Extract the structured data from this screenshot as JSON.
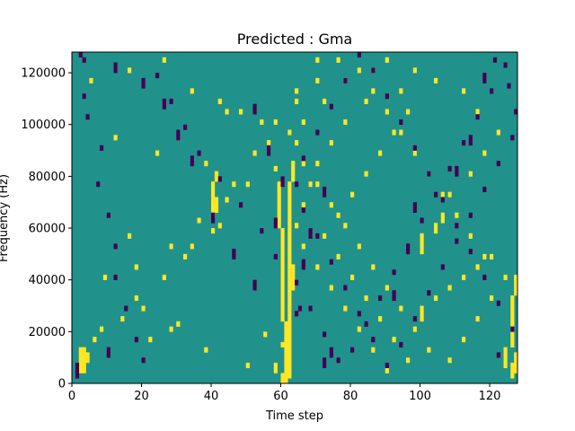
{
  "chart_data": {
    "type": "heatmap",
    "title": "Predicted : Gma",
    "xlabel": "Time step",
    "ylabel": "Frequency (Hz)",
    "xlim": [
      0,
      128
    ],
    "ylim": [
      0,
      128000
    ],
    "x_ticks": [
      0,
      20,
      40,
      60,
      80,
      100,
      120
    ],
    "y_ticks": [
      0,
      20000,
      40000,
      60000,
      80000,
      100000,
      120000
    ],
    "x_tick_labels": [
      "0",
      "20",
      "40",
      "60",
      "80",
      "100",
      "120"
    ],
    "y_tick_labels": [
      "0",
      "20000",
      "40000",
      "60000",
      "80000",
      "100000",
      "120000"
    ],
    "rows": 64,
    "cols": 128,
    "value_levels": [
      -1,
      0,
      1
    ],
    "colormap": {
      "-1": "#440154",
      "0": "#21918c",
      "1": "#fde725"
    },
    "background_value": 0,
    "cells": {
      "high": [
        [
          2,
          2
        ],
        [
          3,
          2
        ],
        [
          4,
          2
        ],
        [
          5,
          2
        ],
        [
          6,
          2
        ],
        [
          2,
          3
        ],
        [
          3,
          3
        ],
        [
          4,
          3
        ],
        [
          5,
          3
        ],
        [
          6,
          3
        ],
        [
          4,
          4
        ],
        [
          5,
          4
        ],
        [
          7,
          60
        ],
        [
          3,
          50
        ],
        [
          9,
          55
        ],
        [
          6,
          38
        ],
        [
          11,
          30
        ],
        [
          8,
          22
        ],
        [
          12,
          14
        ],
        [
          10,
          8
        ],
        [
          20,
          9
        ],
        [
          22,
          18
        ],
        [
          26,
          28
        ],
        [
          29,
          40
        ],
        [
          31,
          36
        ],
        [
          35,
          44
        ],
        [
          38,
          50
        ],
        [
          41,
          58
        ],
        [
          44,
          24
        ],
        [
          47,
          12
        ],
        [
          58,
          5
        ],
        [
          60,
          16
        ],
        [
          62,
          26
        ],
        [
          56,
          34
        ],
        [
          54,
          42
        ],
        [
          52,
          48
        ],
        [
          50,
          54
        ],
        [
          48,
          62
        ],
        [
          38,
          59
        ],
        [
          37,
          59
        ],
        [
          36,
          59
        ],
        [
          35,
          59
        ],
        [
          34,
          59
        ],
        [
          33,
          59
        ],
        [
          32,
          59
        ],
        [
          31,
          59
        ],
        [
          30,
          59
        ],
        [
          29,
          60
        ],
        [
          28,
          60
        ],
        [
          27,
          60
        ],
        [
          26,
          60
        ],
        [
          25,
          60
        ],
        [
          24,
          60
        ],
        [
          23,
          60
        ],
        [
          22,
          60
        ],
        [
          21,
          60
        ],
        [
          20,
          60
        ],
        [
          19,
          60
        ],
        [
          18,
          60
        ],
        [
          17,
          60
        ],
        [
          16,
          60
        ],
        [
          15,
          60
        ],
        [
          14,
          60
        ],
        [
          13,
          60
        ],
        [
          12,
          60
        ],
        [
          11,
          61
        ],
        [
          10,
          61
        ],
        [
          9,
          61
        ],
        [
          8,
          61
        ],
        [
          7,
          61
        ],
        [
          6,
          61
        ],
        [
          5,
          61
        ],
        [
          4,
          61
        ],
        [
          3,
          61
        ],
        [
          2,
          61
        ],
        [
          1,
          61
        ],
        [
          0,
          61
        ],
        [
          1,
          62
        ],
        [
          2,
          62
        ],
        [
          3,
          62
        ],
        [
          4,
          62
        ],
        [
          5,
          62
        ],
        [
          6,
          62
        ],
        [
          7,
          62
        ],
        [
          8,
          62
        ],
        [
          9,
          62
        ],
        [
          10,
          62
        ],
        [
          11,
          62
        ],
        [
          12,
          62
        ],
        [
          13,
          62
        ],
        [
          14,
          62
        ],
        [
          15,
          62
        ],
        [
          16,
          62
        ],
        [
          17,
          62
        ],
        [
          18,
          62
        ],
        [
          19,
          62
        ],
        [
          20,
          62
        ],
        [
          21,
          62
        ],
        [
          22,
          62
        ],
        [
          23,
          62
        ],
        [
          24,
          62
        ],
        [
          25,
          62
        ],
        [
          26,
          62
        ],
        [
          27,
          62
        ],
        [
          28,
          62
        ],
        [
          29,
          62
        ],
        [
          30,
          62
        ],
        [
          31,
          62
        ],
        [
          32,
          62
        ],
        [
          33,
          62
        ],
        [
          34,
          62
        ],
        [
          35,
          62
        ],
        [
          36,
          62
        ],
        [
          37,
          62
        ],
        [
          38,
          62
        ],
        [
          39,
          63
        ],
        [
          40,
          63
        ],
        [
          41,
          63
        ],
        [
          42,
          63
        ],
        [
          0,
          60
        ],
        [
          1,
          60
        ],
        [
          33,
          40
        ],
        [
          34,
          40
        ],
        [
          35,
          40
        ],
        [
          36,
          40
        ],
        [
          37,
          40
        ],
        [
          38,
          40
        ],
        [
          39,
          41
        ],
        [
          40,
          41
        ],
        [
          33,
          41
        ],
        [
          34,
          41
        ],
        [
          35,
          41
        ],
        [
          2,
          58
        ],
        [
          3,
          58
        ],
        [
          18,
          63
        ],
        [
          19,
          63
        ],
        [
          20,
          63
        ],
        [
          21,
          63
        ],
        [
          22,
          63
        ],
        [
          3,
          124
        ],
        [
          4,
          124
        ],
        [
          5,
          124
        ],
        [
          6,
          124
        ],
        [
          1,
          126
        ],
        [
          2,
          126
        ],
        [
          3,
          126
        ],
        [
          7,
          126
        ],
        [
          8,
          126
        ],
        [
          9,
          126
        ],
        [
          10,
          126
        ],
        [
          11,
          126
        ],
        [
          12,
          126
        ],
        [
          13,
          126
        ],
        [
          14,
          126
        ],
        [
          15,
          126
        ],
        [
          16,
          126
        ],
        [
          17,
          127
        ],
        [
          18,
          127
        ],
        [
          19,
          127
        ],
        [
          20,
          127
        ],
        [
          2,
          127
        ],
        [
          3,
          127
        ],
        [
          4,
          127
        ],
        [
          5,
          127
        ],
        [
          25,
          100
        ],
        [
          26,
          100
        ],
        [
          27,
          100
        ],
        [
          28,
          100
        ],
        [
          30,
          104
        ],
        [
          29,
          104
        ],
        [
          31,
          106
        ],
        [
          32,
          106
        ],
        [
          12,
          100
        ],
        [
          13,
          100
        ],
        [
          14,
          100
        ],
        [
          16,
          104
        ],
        [
          18,
          108
        ],
        [
          20,
          112
        ],
        [
          22,
          116
        ],
        [
          24,
          120
        ],
        [
          36,
          108
        ],
        [
          40,
          114
        ],
        [
          44,
          118
        ],
        [
          48,
          122
        ],
        [
          52,
          116
        ],
        [
          56,
          112
        ],
        [
          58,
          104
        ],
        [
          60,
          98
        ],
        [
          62,
          90
        ],
        [
          54,
          84
        ],
        [
          50,
          78
        ],
        [
          46,
          74
        ],
        [
          42,
          70
        ],
        [
          38,
          68
        ],
        [
          34,
          66
        ],
        [
          30,
          64
        ],
        [
          26,
          66
        ],
        [
          22,
          70
        ],
        [
          18,
          74
        ],
        [
          14,
          78
        ],
        [
          10,
          82
        ],
        [
          6,
          86
        ],
        [
          2,
          90
        ],
        [
          4,
          96
        ],
        [
          8,
          92
        ],
        [
          12,
          88
        ],
        [
          16,
          84
        ],
        [
          20,
          80
        ],
        [
          24,
          76
        ],
        [
          28,
          72
        ],
        [
          32,
          76
        ],
        [
          36,
          80
        ],
        [
          40,
          84
        ],
        [
          44,
          88
        ],
        [
          48,
          92
        ],
        [
          52,
          96
        ],
        [
          56,
          94
        ],
        [
          60,
          86
        ],
        [
          58,
          78
        ],
        [
          54,
          72
        ],
        [
          50,
          66
        ],
        [
          46,
          64
        ],
        [
          42,
          66
        ],
        [
          38,
          70
        ],
        [
          34,
          74
        ],
        [
          30,
          78
        ],
        [
          26,
          82
        ],
        [
          22,
          86
        ],
        [
          18,
          90
        ],
        [
          14,
          94
        ],
        [
          10,
          98
        ],
        [
          6,
          102
        ],
        [
          4,
          108
        ],
        [
          8,
          112
        ],
        [
          12,
          116
        ],
        [
          16,
          120
        ],
        [
          20,
          124
        ],
        [
          24,
          118
        ],
        [
          28,
          114
        ],
        [
          32,
          110
        ],
        [
          36,
          106
        ],
        [
          40,
          102
        ],
        [
          44,
          98
        ],
        [
          48,
          94
        ],
        [
          52,
          90
        ],
        [
          56,
          86
        ],
        [
          60,
          82
        ],
        [
          62,
          76
        ],
        [
          58,
          70
        ],
        [
          54,
          64
        ],
        [
          8,
          6
        ],
        [
          14,
          20
        ],
        [
          20,
          26
        ],
        [
          26,
          34
        ],
        [
          32,
          40
        ],
        [
          38,
          46
        ],
        [
          44,
          52
        ],
        [
          50,
          58
        ],
        [
          56,
          64
        ],
        [
          62,
          70
        ],
        [
          16,
          18
        ],
        [
          24,
          32
        ],
        [
          30,
          42
        ],
        [
          46,
          56
        ],
        [
          52,
          44
        ],
        [
          42,
          38
        ],
        [
          28,
          16
        ],
        [
          10,
          28
        ]
      ],
      "low": [
        [
          1,
          1
        ],
        [
          2,
          1
        ],
        [
          3,
          1
        ],
        [
          63,
          2
        ],
        [
          62,
          3
        ],
        [
          55,
          3
        ],
        [
          51,
          4
        ],
        [
          45,
          8
        ],
        [
          38,
          7
        ],
        [
          32,
          10
        ],
        [
          26,
          12
        ],
        [
          20,
          12
        ],
        [
          14,
          15
        ],
        [
          8,
          18
        ],
        [
          4,
          20
        ],
        [
          59,
          24
        ],
        [
          54,
          28
        ],
        [
          49,
          32
        ],
        [
          44,
          36
        ],
        [
          39,
          42
        ],
        [
          34,
          48
        ],
        [
          29,
          54
        ],
        [
          24,
          58
        ],
        [
          19,
          64
        ],
        [
          14,
          68
        ],
        [
          9,
          72
        ],
        [
          4,
          76
        ],
        [
          6,
          80
        ],
        [
          11,
          84
        ],
        [
          16,
          88
        ],
        [
          21,
          92
        ],
        [
          26,
          96
        ],
        [
          31,
          100
        ],
        [
          36,
          104
        ],
        [
          41,
          108
        ],
        [
          46,
          112
        ],
        [
          51,
          116
        ],
        [
          56,
          120
        ],
        [
          61,
          124
        ],
        [
          57,
          125
        ],
        [
          52,
          127
        ],
        [
          47,
          126
        ],
        [
          42,
          122
        ],
        [
          37,
          118
        ],
        [
          32,
          114
        ],
        [
          27,
          110
        ],
        [
          22,
          106
        ],
        [
          17,
          102
        ],
        [
          12,
          98
        ],
        [
          7,
          94
        ],
        [
          3,
          90
        ],
        [
          8,
          86
        ],
        [
          13,
          82
        ],
        [
          18,
          78
        ],
        [
          23,
          74
        ],
        [
          28,
          70
        ],
        [
          33,
          66
        ],
        [
          38,
          64
        ],
        [
          43,
          66
        ],
        [
          48,
          70
        ],
        [
          53,
          74
        ],
        [
          58,
          78
        ],
        [
          63,
          82
        ],
        [
          60,
          86
        ],
        [
          55,
          90
        ],
        [
          50,
          94
        ],
        [
          45,
          98
        ],
        [
          40,
          102
        ],
        [
          35,
          106
        ],
        [
          30,
          110
        ],
        [
          25,
          114
        ],
        [
          20,
          118
        ],
        [
          15,
          122
        ],
        [
          10,
          126
        ],
        [
          5,
          122
        ],
        [
          3,
          72
        ],
        [
          4,
          72
        ],
        [
          5,
          74
        ],
        [
          6,
          74
        ],
        [
          13,
          64
        ],
        [
          14,
          65
        ],
        [
          22,
          66
        ],
        [
          23,
          66
        ],
        [
          28,
          68
        ],
        [
          29,
          68
        ],
        [
          36,
          72
        ],
        [
          37,
          72
        ],
        [
          18,
          52
        ],
        [
          19,
          52
        ],
        [
          24,
          46
        ],
        [
          25,
          46
        ],
        [
          31,
          40
        ],
        [
          32,
          40
        ],
        [
          42,
          34
        ],
        [
          43,
          34
        ],
        [
          47,
          30
        ],
        [
          48,
          30
        ],
        [
          53,
          26
        ],
        [
          54,
          26
        ],
        [
          57,
          20
        ],
        [
          58,
          20
        ],
        [
          60,
          12
        ],
        [
          61,
          12
        ],
        [
          52,
          52
        ],
        [
          53,
          52
        ],
        [
          44,
          56
        ],
        [
          45,
          56
        ],
        [
          38,
          60
        ],
        [
          39,
          60
        ],
        [
          30,
          58
        ],
        [
          31,
          58
        ],
        [
          16,
          92
        ],
        [
          17,
          92
        ],
        [
          25,
          96
        ],
        [
          26,
          96
        ],
        [
          33,
          98
        ],
        [
          34,
          98
        ],
        [
          40,
          110
        ],
        [
          41,
          110
        ],
        [
          46,
          114
        ],
        [
          47,
          114
        ],
        [
          58,
          118
        ],
        [
          59,
          118
        ],
        [
          62,
          121
        ],
        [
          5,
          10
        ],
        [
          6,
          10
        ]
      ]
    }
  }
}
